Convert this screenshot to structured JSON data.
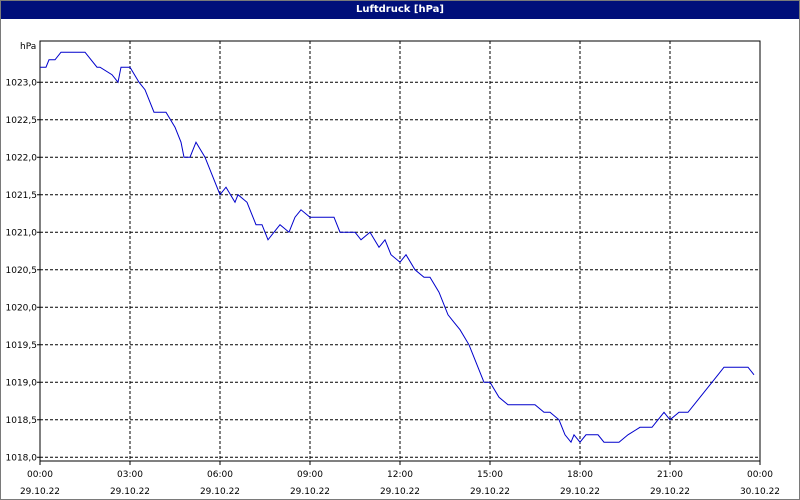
{
  "window": {
    "title": "Luftdruck [hPa]"
  },
  "chart_data": {
    "type": "line",
    "title": "Luftdruck [hPa]",
    "ylabel": "hPa",
    "xlabel": "",
    "ylim": [
      1017.95,
      1023.55
    ],
    "xlim_hours": [
      0,
      24
    ],
    "grid": true,
    "line_color": "#0000cc",
    "y_ticks": [
      "1018,0",
      "1018,5",
      "1019,0",
      "1019,5",
      "1020,0",
      "1020,5",
      "1021,0",
      "1021,5",
      "1022,0",
      "1022,5",
      "1023,0"
    ],
    "y_tick_values": [
      1018.0,
      1018.5,
      1019.0,
      1019.5,
      1020.0,
      1020.5,
      1021.0,
      1021.5,
      1022.0,
      1022.5,
      1023.0
    ],
    "x_ticks": [
      {
        "time": "00:00",
        "date": "29.10.22"
      },
      {
        "time": "03:00",
        "date": "29.10.22"
      },
      {
        "time": "06:00",
        "date": "29.10.22"
      },
      {
        "time": "09:00",
        "date": "29.10.22"
      },
      {
        "time": "12:00",
        "date": "29.10.22"
      },
      {
        "time": "15:00",
        "date": "29.10.22"
      },
      {
        "time": "18:00",
        "date": "29.10.22"
      },
      {
        "time": "21:00",
        "date": "29.10.22"
      },
      {
        "time": "00:00",
        "date": "30.10.22"
      }
    ],
    "x_tick_hours": [
      0,
      3,
      6,
      9,
      12,
      15,
      18,
      21,
      24
    ],
    "series": [
      {
        "x": [
          0.0,
          0.2,
          0.3,
          0.5,
          0.7,
          1.0,
          1.5,
          1.9,
          2.0,
          2.4,
          2.6,
          2.7,
          3.0,
          3.3,
          3.5,
          3.8,
          4.0,
          4.2,
          4.5,
          4.7,
          4.8,
          5.0,
          5.2,
          5.5,
          5.8,
          6.0,
          6.2,
          6.5,
          6.6,
          6.9,
          7.0,
          7.2,
          7.4,
          7.6,
          7.8,
          8.0,
          8.3,
          8.5,
          8.7,
          9.0,
          9.2,
          9.5,
          9.8,
          10.0,
          10.2,
          10.5,
          10.7,
          11.0,
          11.3,
          11.5,
          11.7,
          12.0,
          12.2,
          12.5,
          12.8,
          13.0,
          13.3,
          13.6,
          13.8,
          14.0,
          14.3,
          14.5,
          14.8,
          15.0,
          15.3,
          15.6,
          16.0,
          16.5,
          16.8,
          17.0,
          17.3,
          17.5,
          17.7,
          17.8,
          18.0,
          18.2,
          18.4,
          18.6,
          18.8,
          19.0,
          19.3,
          19.6,
          20.0,
          20.4,
          20.6,
          20.8,
          21.0,
          21.3,
          21.6,
          22.0,
          22.4,
          22.6,
          22.8,
          23.0,
          23.3,
          23.6,
          23.8
        ],
        "values": [
          1023.2,
          1023.2,
          1023.3,
          1023.3,
          1023.4,
          1023.4,
          1023.4,
          1023.2,
          1023.2,
          1023.1,
          1023.0,
          1023.2,
          1023.2,
          1023.0,
          1022.9,
          1022.6,
          1022.6,
          1022.6,
          1022.4,
          1022.2,
          1022.0,
          1022.0,
          1022.2,
          1022.0,
          1021.7,
          1021.5,
          1021.6,
          1021.4,
          1021.5,
          1021.4,
          1021.3,
          1021.1,
          1021.1,
          1020.9,
          1021.0,
          1021.1,
          1021.0,
          1021.2,
          1021.3,
          1021.2,
          1021.2,
          1021.2,
          1021.2,
          1021.0,
          1021.0,
          1021.0,
          1020.9,
          1021.0,
          1020.8,
          1020.9,
          1020.7,
          1020.6,
          1020.7,
          1020.5,
          1020.4,
          1020.4,
          1020.2,
          1019.9,
          1019.8,
          1019.7,
          1019.5,
          1019.3,
          1019.0,
          1019.0,
          1018.8,
          1018.7,
          1018.7,
          1018.7,
          1018.6,
          1018.6,
          1018.5,
          1018.3,
          1018.2,
          1018.3,
          1018.2,
          1018.3,
          1018.3,
          1018.3,
          1018.2,
          1018.2,
          1018.2,
          1018.3,
          1018.4,
          1018.4,
          1018.5,
          1018.6,
          1018.5,
          1018.6,
          1018.6,
          1018.8,
          1019.0,
          1019.1,
          1019.2,
          1019.2,
          1019.2,
          1019.2,
          1019.1
        ]
      }
    ]
  }
}
